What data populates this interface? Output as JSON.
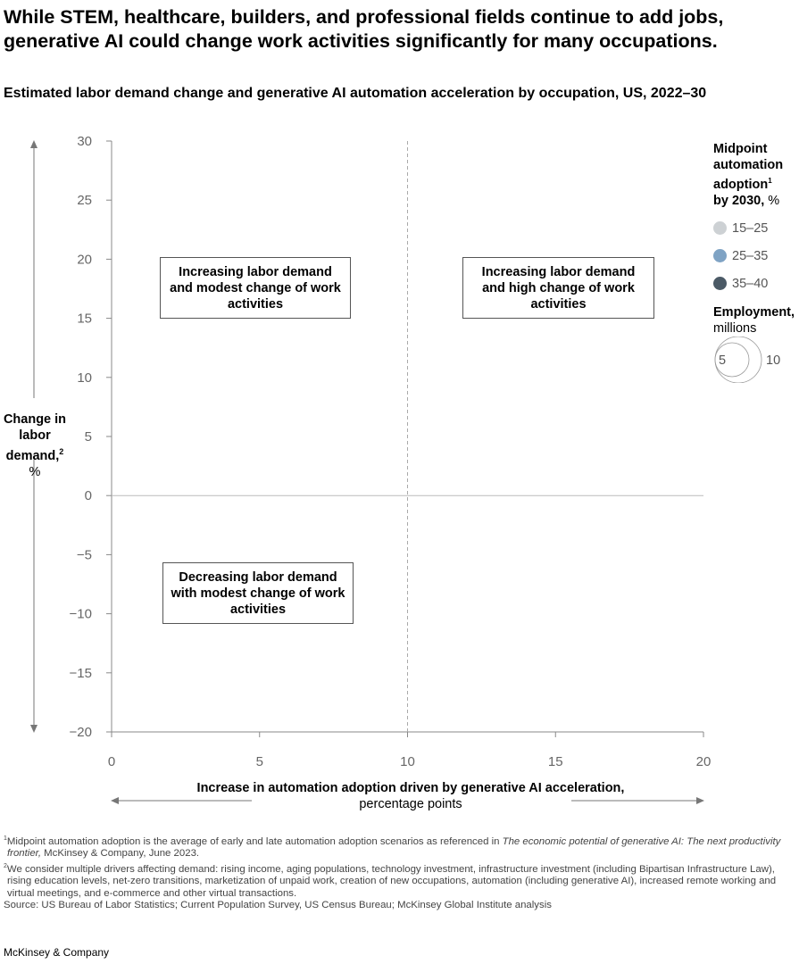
{
  "title": "While STEM, healthcare, builders, and professional fields continue to add jobs, generative AI could change work activities significantly for many occupations.",
  "subtitle": "Estimated labor demand change and generative AI automation acceleration by occupation, US, 2022–30",
  "chart_data": {
    "type": "scatter",
    "xlabel_bold": "Increase in automation adoption driven by generative AI acceleration,",
    "xlabel_unit": "percentage points",
    "ylabel_bold": "Change in labor demand,",
    "ylabel_sup": "2",
    "ylabel_unit": "%",
    "xlim": [
      0,
      20
    ],
    "ylim": [
      -20,
      30
    ],
    "x_ticks": [
      "0",
      "5",
      "10",
      "15",
      "20"
    ],
    "y_ticks": [
      "30",
      "25",
      "20",
      "15",
      "10",
      "5",
      "0",
      "−5",
      "−10",
      "−15",
      "−20"
    ],
    "x_divider": 10,
    "y_divider": 0,
    "series": [],
    "quadrants": [
      {
        "label": "Increasing labor demand and modest change of work activities"
      },
      {
        "label": "Increasing labor demand and high change of work activities"
      },
      {
        "label": "Decreasing labor demand with modest change of work activities"
      }
    ]
  },
  "legend": {
    "color_title": "Midpoint automation adoption",
    "color_title_sup": "1",
    "color_title_2": "by 2030,",
    "color_unit": "%",
    "items": [
      {
        "label": "15–25",
        "color": "#cdd1d4"
      },
      {
        "label": "25–35",
        "color": "#7fa3c4"
      },
      {
        "label": "35–40",
        "color": "#4b5a66"
      }
    ],
    "size_title": "Employment,",
    "size_unit": "millions",
    "size_small": "5",
    "size_large": "10"
  },
  "notes": {
    "n1_sup": "1",
    "n1_a": "Midpoint automation adoption is the average of early and late automation adoption scenarios as referenced in ",
    "n1_italic": "The economic potential of generative AI: The next productivity frontier,",
    "n1_b": " McKinsey & Company, June 2023.",
    "n2_sup": "2",
    "n2": "We consider multiple drivers affecting demand: rising income, aging populations, technology investment, infrastructure investment (including Bipartisan Infrastructure Law), rising education levels, net-zero transitions, marketization of unpaid work, creation of new occupations, automation (including generative AI), increased remote working and virtual meetings, and e-commerce and other virtual transactions.",
    "source": "Source: US Bureau of Labor Statistics; Current Population Survey, US Census Bureau; McKinsey Global Institute analysis"
  },
  "brand": "McKinsey & Company"
}
